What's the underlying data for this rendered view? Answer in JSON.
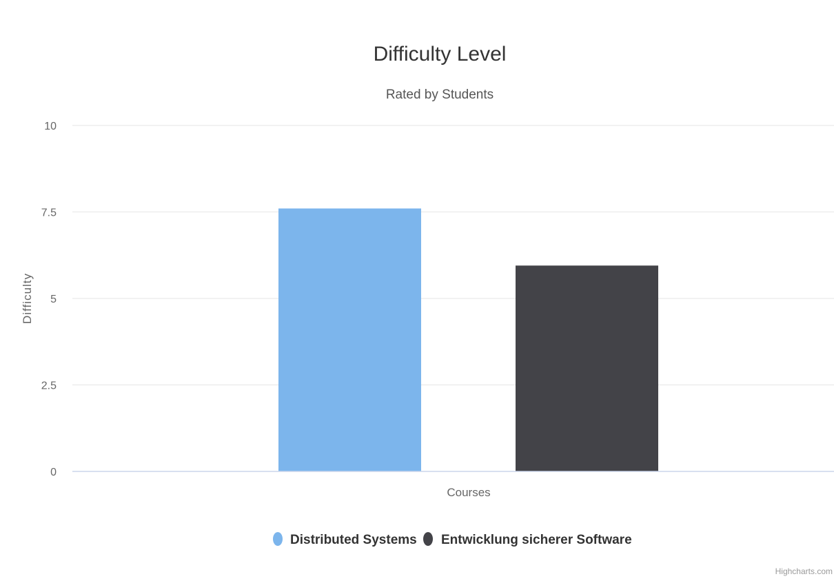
{
  "chart_data": {
    "type": "bar",
    "title": "Difficulty Level",
    "subtitle": "Rated by Students",
    "xlabel": "Courses",
    "ylabel": "Difficulty",
    "ylim": [
      0,
      10
    ],
    "yticks": [
      "0",
      "2.5",
      "5",
      "7.5",
      "10"
    ],
    "grid": true,
    "legend_position": "bottom-center",
    "series": [
      {
        "name": "Distributed Systems",
        "value": 7.6,
        "color": "#7cb5ec"
      },
      {
        "name": "Entwicklung sicherer Software",
        "value": 5.95,
        "color": "#434348"
      }
    ]
  },
  "credits": "Highcharts.com"
}
